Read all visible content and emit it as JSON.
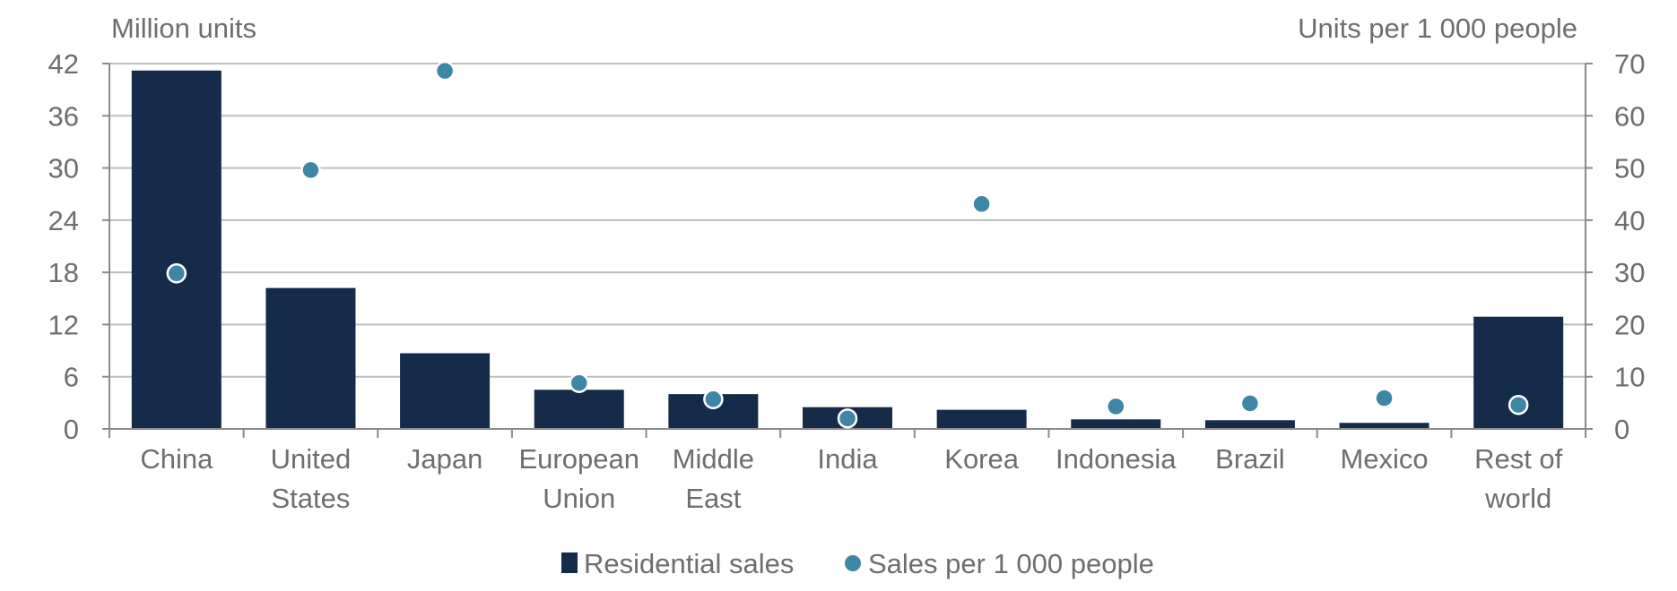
{
  "chart_data": {
    "type": "bar",
    "categories": [
      [
        "China"
      ],
      [
        "United",
        "States"
      ],
      [
        "Japan"
      ],
      [
        "European",
        "Union"
      ],
      [
        "Middle",
        "East"
      ],
      [
        "India"
      ],
      [
        "Korea"
      ],
      [
        "Indonesia"
      ],
      [
        "Brazil"
      ],
      [
        "Mexico"
      ],
      [
        "Rest of",
        "world"
      ]
    ],
    "series": [
      {
        "name": "Residential sales",
        "type": "bar",
        "axis": "left",
        "color": "#142b4a",
        "values": [
          41.2,
          16.2,
          8.7,
          4.5,
          4.0,
          2.5,
          2.2,
          1.1,
          1.0,
          0.7,
          12.9
        ]
      },
      {
        "name": "Sales per 1 000 people",
        "type": "scatter",
        "axis": "right",
        "color": "#3c87a5",
        "values": [
          29.8,
          49.6,
          68.6,
          8.8,
          5.7,
          2.0,
          43.1,
          4.3,
          4.9,
          5.9,
          4.6
        ]
      }
    ],
    "ylabel_left": "Million units",
    "ylabel_right": "Units per 1 000 people",
    "ylim_left": [
      0,
      42
    ],
    "yticks_left": [
      "0",
      "6",
      "12",
      "18",
      "24",
      "30",
      "36",
      "42"
    ],
    "ylim_right": [
      0,
      70
    ],
    "yticks_right": [
      "0",
      "10",
      "20",
      "30",
      "40",
      "50",
      "60",
      "70"
    ],
    "grid": true,
    "legend_position": "bottom"
  }
}
